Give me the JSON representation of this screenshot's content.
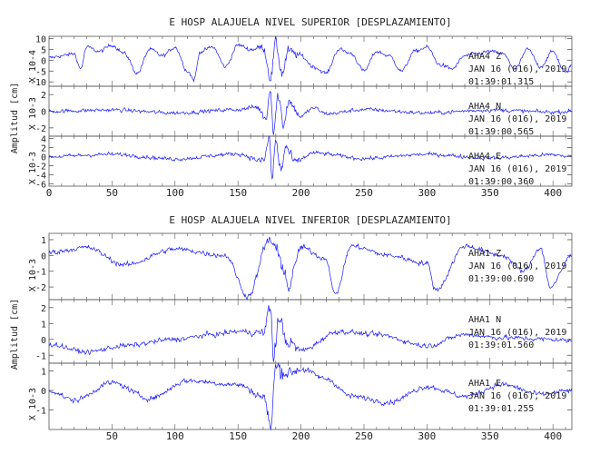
{
  "chart_data": [
    {
      "type": "line",
      "title": "E HOSP ALAJUELA NIVEL SUPERIOR [DESPLAZAMIENTO]",
      "ylabel": "Amplitud [cm]",
      "xlim": [
        0,
        415
      ],
      "xticks": [
        0,
        50,
        100,
        150,
        200,
        250,
        300,
        350,
        400
      ],
      "series": [
        {
          "station": "AHA4",
          "component": "Z",
          "date": "JAN 16 (016), 2019",
          "time": "01:39:01.315",
          "scale_label": "X 10-4",
          "ylim": [
            -12,
            11
          ],
          "yticks": [
            10,
            5,
            0,
            -5,
            -10
          ],
          "approx_trace": [
            [
              0,
              1
            ],
            [
              10,
              2
            ],
            [
              20,
              3
            ],
            [
              25,
              -4
            ],
            [
              30,
              6
            ],
            [
              40,
              4
            ],
            [
              50,
              7
            ],
            [
              60,
              3
            ],
            [
              70,
              -6
            ],
            [
              80,
              5
            ],
            [
              90,
              2
            ],
            [
              100,
              6
            ],
            [
              110,
              -5
            ],
            [
              115,
              -9
            ],
            [
              120,
              4
            ],
            [
              130,
              6
            ],
            [
              140,
              -3
            ],
            [
              150,
              7
            ],
            [
              160,
              5
            ],
            [
              170,
              6
            ],
            [
              176,
              -8
            ],
            [
              180,
              8
            ],
            [
              185,
              -6
            ],
            [
              190,
              4
            ],
            [
              200,
              2
            ],
            [
              210,
              -3
            ],
            [
              220,
              -6
            ],
            [
              230,
              5
            ],
            [
              240,
              3
            ],
            [
              250,
              -5
            ],
            [
              260,
              4
            ],
            [
              270,
              2
            ],
            [
              280,
              -5
            ],
            [
              290,
              4
            ],
            [
              300,
              6
            ],
            [
              310,
              -2
            ],
            [
              320,
              -4
            ],
            [
              330,
              2
            ],
            [
              340,
              3
            ],
            [
              350,
              4
            ],
            [
              360,
              3
            ],
            [
              370,
              -4
            ],
            [
              380,
              5
            ],
            [
              390,
              -3
            ],
            [
              400,
              4
            ],
            [
              410,
              -6
            ],
            [
              415,
              -2
            ]
          ]
        },
        {
          "station": "AHA4",
          "component": "N",
          "date": "JAN 16 (016), 2019",
          "time": "01:39:00.565",
          "scale_label": "X 10-3",
          "ylim": [
            -3,
            3
          ],
          "yticks": [
            2,
            0,
            -2
          ],
          "approx_trace": [
            [
              0,
              0
            ],
            [
              50,
              0.15
            ],
            [
              100,
              -0.2
            ],
            [
              150,
              0.2
            ],
            [
              165,
              0.5
            ],
            [
              172,
              -0.8
            ],
            [
              176,
              2.8
            ],
            [
              178,
              -2.4
            ],
            [
              182,
              1.9
            ],
            [
              186,
              -1.6
            ],
            [
              190,
              1.2
            ],
            [
              200,
              -0.6
            ],
            [
              210,
              0.4
            ],
            [
              220,
              -0.3
            ],
            [
              250,
              0.2
            ],
            [
              300,
              -0.2
            ],
            [
              350,
              0.15
            ],
            [
              400,
              -0.1
            ],
            [
              415,
              0
            ]
          ]
        },
        {
          "station": "AHA4",
          "component": "E",
          "date": "JAN 16 (016), 2019",
          "time": "01:39:00.360",
          "scale_label": "X 10-3",
          "ylim": [
            -6.5,
            4.5
          ],
          "yticks": [
            4,
            2,
            0,
            -2,
            -4,
            -6
          ],
          "approx_trace": [
            [
              0,
              0
            ],
            [
              50,
              0.5
            ],
            [
              100,
              -0.5
            ],
            [
              150,
              0.6
            ],
            [
              170,
              -1
            ],
            [
              175,
              3.9
            ],
            [
              177,
              -4.8
            ],
            [
              180,
              3.3
            ],
            [
              184,
              -3
            ],
            [
              188,
              2
            ],
            [
              195,
              -1.2
            ],
            [
              210,
              0.8
            ],
            [
              250,
              -0.4
            ],
            [
              300,
              0.5
            ],
            [
              350,
              -0.3
            ],
            [
              400,
              0.4
            ],
            [
              415,
              0
            ]
          ]
        }
      ]
    },
    {
      "type": "line",
      "title": "E HOSP ALAJUELA NIVEL INFERIOR [DESPLAZAMIENTO]",
      "ylabel": "Amplitud [cm]",
      "xlim": [
        0,
        415
      ],
      "xticks": [
        50,
        100,
        150,
        200,
        250,
        300,
        350,
        400
      ],
      "series": [
        {
          "station": "AHA1",
          "component": "Z",
          "date": "JAN 16 (016), 2019",
          "time": "01:39:00.690",
          "scale_label": "X 10-3",
          "ylim": [
            -2.8,
            1.4
          ],
          "yticks": [
            1,
            0,
            -1,
            -2
          ],
          "approx_trace": [
            [
              0,
              0.2
            ],
            [
              30,
              0.5
            ],
            [
              60,
              -0.6
            ],
            [
              100,
              0.4
            ],
            [
              140,
              0
            ],
            [
              158,
              -2.6
            ],
            [
              175,
              1
            ],
            [
              185,
              -0.4
            ],
            [
              190,
              -2
            ],
            [
              200,
              0.5
            ],
            [
              220,
              -0.2
            ],
            [
              227,
              -2.5
            ],
            [
              240,
              0.6
            ],
            [
              270,
              0
            ],
            [
              300,
              -0.5
            ],
            [
              307,
              -2.2
            ],
            [
              330,
              0.6
            ],
            [
              360,
              0
            ],
            [
              377,
              -1
            ],
            [
              390,
              0.5
            ],
            [
              398,
              -2
            ],
            [
              415,
              0
            ]
          ]
        },
        {
          "station": "AHA1",
          "component": "N",
          "date": "JAN 16 (016), 2019",
          "time": "01:39:01.560",
          "scale_label": "",
          "ylim": [
            -1.5,
            2.5
          ],
          "yticks": [
            2,
            1,
            0,
            -1
          ],
          "approx_trace": [
            [
              0,
              -0.3
            ],
            [
              30,
              -0.8
            ],
            [
              60,
              -0.4
            ],
            [
              100,
              0
            ],
            [
              130,
              0.3
            ],
            [
              150,
              0.5
            ],
            [
              170,
              0.4
            ],
            [
              176,
              2.1
            ],
            [
              178,
              -1.3
            ],
            [
              182,
              1.2
            ],
            [
              190,
              -0.2
            ],
            [
              200,
              -0.7
            ],
            [
              230,
              0.5
            ],
            [
              260,
              0.3
            ],
            [
              300,
              -0.4
            ],
            [
              330,
              0.3
            ],
            [
              360,
              0.1
            ],
            [
              400,
              0
            ],
            [
              415,
              -0.1
            ]
          ]
        },
        {
          "station": "AHA1",
          "component": "E",
          "date": "JAN 16 (016), 2019",
          "time": "01:39:01.255",
          "scale_label": "X 10-3",
          "ylim": [
            -2,
            1.4
          ],
          "yticks": [
            1,
            0,
            -1
          ],
          "approx_trace": [
            [
              0,
              0
            ],
            [
              20,
              -0.5
            ],
            [
              50,
              0.4
            ],
            [
              80,
              -0.4
            ],
            [
              110,
              0.5
            ],
            [
              150,
              0.3
            ],
            [
              170,
              -0.3
            ],
            [
              176,
              -1.8
            ],
            [
              180,
              1.2
            ],
            [
              190,
              0.9
            ],
            [
              200,
              1.1
            ],
            [
              220,
              0.6
            ],
            [
              240,
              -0.3
            ],
            [
              270,
              -0.6
            ],
            [
              300,
              0.2
            ],
            [
              330,
              -0.3
            ],
            [
              360,
              0.3
            ],
            [
              390,
              -0.2
            ],
            [
              415,
              0
            ]
          ]
        }
      ]
    }
  ]
}
